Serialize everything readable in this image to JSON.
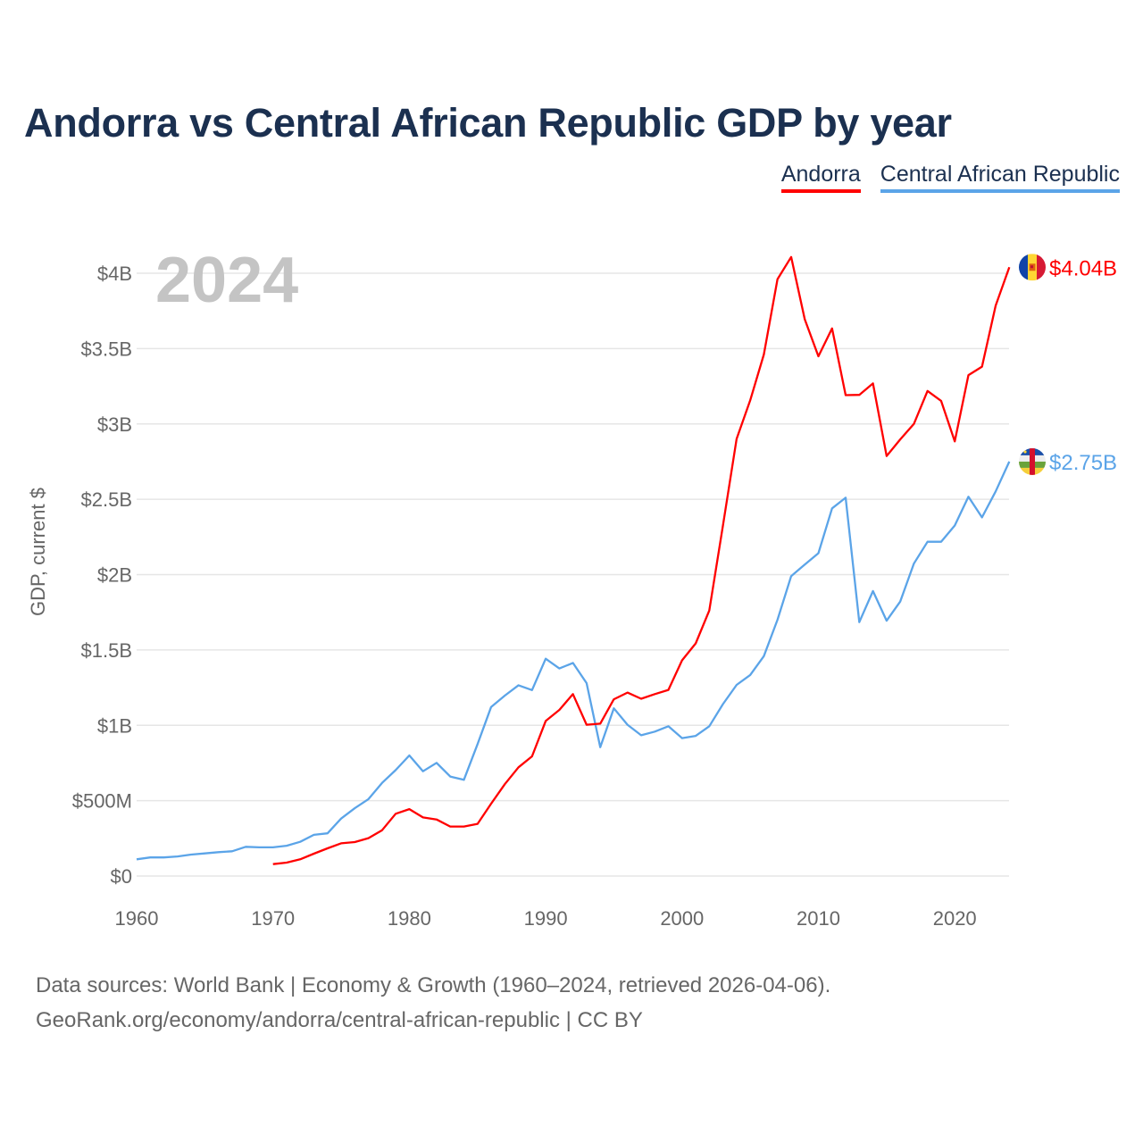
{
  "title": "Andorra vs Central African Republic GDP by year",
  "legend": [
    {
      "label": "Andorra",
      "color": "#ff0000"
    },
    {
      "label": "Central African Republic",
      "color": "#5ba4e8"
    }
  ],
  "footer": {
    "line1": "Data sources: World Bank | Economy & Growth (1960–2024, retrieved 2026-04-06).",
    "line2": "GeoRank.org/economy/andorra/central-african-republic | CC BY"
  },
  "chart_data": {
    "type": "line",
    "title": "Andorra vs Central African Republic GDP by year",
    "year_label": "2024",
    "xlabel": "",
    "ylabel": "GDP, current $",
    "xlim": [
      1960,
      2024
    ],
    "ylim": [
      0,
      4.1
    ],
    "x_ticks": [
      1960,
      1970,
      1980,
      1990,
      2000,
      2010,
      2020
    ],
    "x_tick_labels": [
      "1960",
      "1970",
      "1980",
      "1990",
      "2000",
      "2010",
      "2020"
    ],
    "y_ticks": [
      0,
      0.5,
      1,
      1.5,
      2,
      2.5,
      3,
      3.5,
      4
    ],
    "y_tick_labels": [
      "$0",
      "$500M",
      "$1B",
      "$1.5B",
      "$2B",
      "$2.5B",
      "$3B",
      "$3.5B",
      "$4B"
    ],
    "units": "billions USD",
    "grid": true,
    "legend_position": "top-right",
    "series": [
      {
        "name": "Andorra",
        "color": "#ff0000",
        "end_label": "$4.04B",
        "start_year": 1970,
        "values": [
          0.079,
          0.089,
          0.111,
          0.148,
          0.184,
          0.217,
          0.225,
          0.251,
          0.304,
          0.413,
          0.444,
          0.389,
          0.375,
          0.328,
          0.328,
          0.346,
          0.48,
          0.609,
          0.721,
          0.794,
          1.029,
          1.102,
          1.207,
          1.004,
          1.011,
          1.173,
          1.217,
          1.176,
          1.207,
          1.235,
          1.431,
          1.544,
          1.762,
          2.326,
          2.901,
          3.156,
          3.461,
          3.961,
          4.108,
          3.695,
          3.449,
          3.634,
          3.191,
          3.193,
          3.269,
          2.787,
          2.897,
          3.0,
          3.219,
          3.153,
          2.884,
          3.324,
          3.38,
          3.785,
          4.04
        ]
      },
      {
        "name": "Central African Republic",
        "color": "#5ba4e8",
        "end_label": "$2.75B",
        "start_year": 1960,
        "values": [
          0.111,
          0.123,
          0.123,
          0.13,
          0.142,
          0.15,
          0.158,
          0.164,
          0.194,
          0.19,
          0.19,
          0.201,
          0.227,
          0.273,
          0.283,
          0.381,
          0.45,
          0.51,
          0.618,
          0.703,
          0.8,
          0.695,
          0.751,
          0.66,
          0.638,
          0.875,
          1.122,
          1.197,
          1.266,
          1.234,
          1.442,
          1.377,
          1.414,
          1.28,
          0.855,
          1.113,
          1.004,
          0.934,
          0.958,
          0.994,
          0.915,
          0.93,
          0.994,
          1.141,
          1.268,
          1.334,
          1.459,
          1.701,
          1.99,
          2.067,
          2.142,
          2.44,
          2.51,
          1.685,
          1.891,
          1.694,
          1.821,
          2.073,
          2.218,
          2.218,
          2.326,
          2.517,
          2.38,
          2.552,
          2.75
        ]
      }
    ]
  }
}
